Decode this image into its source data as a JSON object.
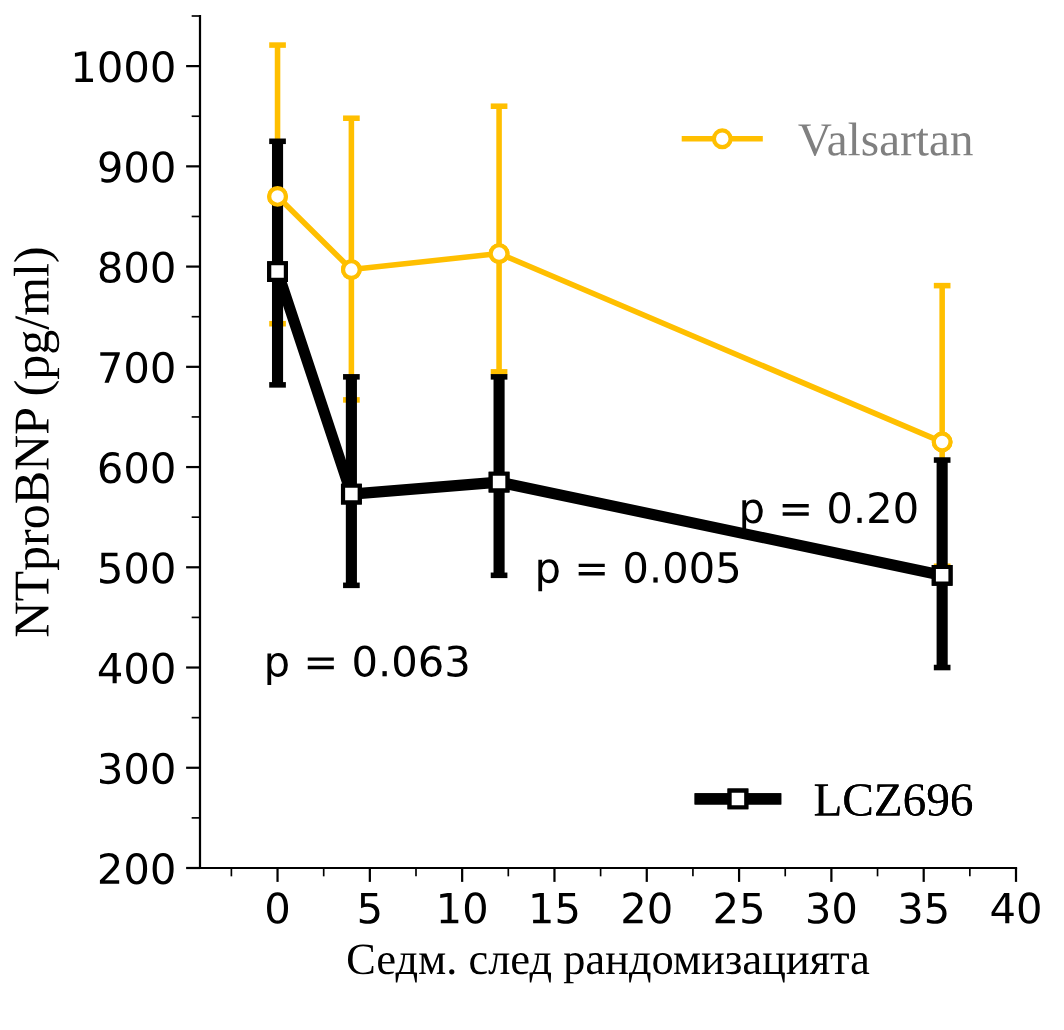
{
  "chart_data": {
    "type": "line",
    "xlabel": "Седм. след рандомизацията",
    "ylabel": "NTproBNP (pg/ml)",
    "x": [
      0,
      4,
      12,
      36
    ],
    "series": [
      {
        "name": "Valsartan",
        "color": "#ffbf00",
        "values": [
          870,
          797,
          813,
          625
        ],
        "errors": [
          [
            743,
            1021
          ],
          [
            667,
            948
          ],
          [
            695,
            960
          ],
          [
            501,
            781
          ]
        ],
        "marker": "circle"
      },
      {
        "name": "LCZ696",
        "color": "#000000",
        "values": [
          795,
          573,
          585,
          492
        ],
        "errors": [
          [
            682,
            925
          ],
          [
            482,
            690
          ],
          [
            492,
            690
          ],
          [
            400,
            607
          ]
        ],
        "marker": "square"
      }
    ],
    "xlim": [
      -4.2,
      40
    ],
    "xticks": [
      0,
      5,
      10,
      15,
      20,
      25,
      30,
      35,
      40
    ],
    "ylim": [
      200,
      1050
    ],
    "yticks": [
      200,
      300,
      400,
      500,
      600,
      700,
      800,
      900,
      1000
    ],
    "annotations": [
      "p = 0.063",
      "p = 0.005",
      "p = 0.20"
    ],
    "grid": false,
    "legend": "right",
    "line_style": "solid"
  }
}
